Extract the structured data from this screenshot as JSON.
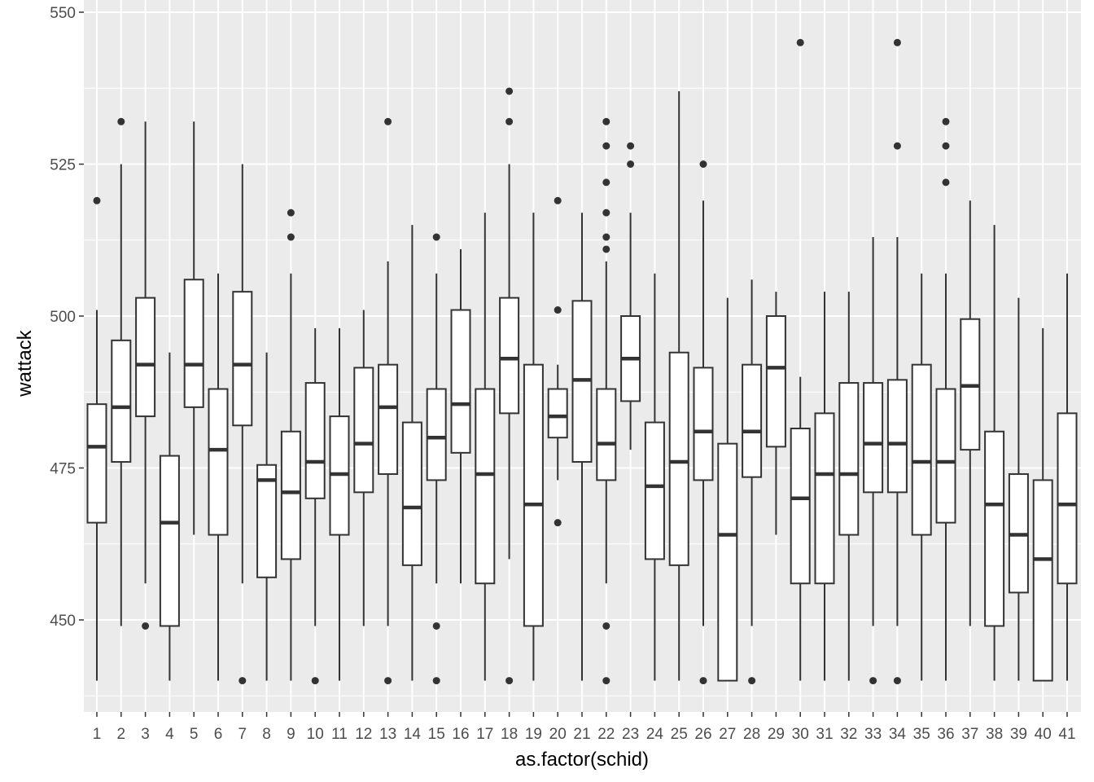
{
  "chart_data": {
    "type": "boxplot",
    "xlabel": "as.factor(schid)",
    "ylabel": "wattack",
    "ylim": [
      435,
      550
    ],
    "y_ticks": [
      450,
      475,
      500,
      525,
      550
    ],
    "grid": true,
    "colors": {
      "panel_background": "#ebebeb",
      "grid_line": "#ffffff",
      "box_fill": "#ffffff",
      "box_stroke": "#333333",
      "outlier": "#333333",
      "tick_text": "#4d4d4d"
    },
    "categories": [
      "1",
      "2",
      "3",
      "4",
      "5",
      "6",
      "7",
      "8",
      "9",
      "10",
      "11",
      "12",
      "13",
      "14",
      "15",
      "16",
      "17",
      "18",
      "19",
      "20",
      "21",
      "22",
      "23",
      "24",
      "25",
      "26",
      "27",
      "28",
      "29",
      "30",
      "31",
      "32",
      "33",
      "34",
      "35",
      "36",
      "37",
      "38",
      "39",
      "40",
      "41"
    ],
    "boxes": [
      {
        "q1": 466,
        "median": 478.5,
        "q3": 485.5,
        "lower": 440,
        "upper": 501,
        "outliers": [
          519
        ]
      },
      {
        "q1": 476,
        "median": 485,
        "q3": 496,
        "lower": 449,
        "upper": 525,
        "outliers": [
          532
        ]
      },
      {
        "q1": 483.5,
        "median": 492,
        "q3": 503,
        "lower": 456,
        "upper": 532,
        "outliers": [
          449
        ]
      },
      {
        "q1": 449,
        "median": 466,
        "q3": 477,
        "lower": 440,
        "upper": 494,
        "outliers": []
      },
      {
        "q1": 485,
        "median": 492,
        "q3": 506,
        "lower": 464,
        "upper": 532,
        "outliers": []
      },
      {
        "q1": 464,
        "median": 478,
        "q3": 488,
        "lower": 440,
        "upper": 507,
        "outliers": []
      },
      {
        "q1": 482,
        "median": 492,
        "q3": 504,
        "lower": 456,
        "upper": 525,
        "outliers": [
          440
        ]
      },
      {
        "q1": 457,
        "median": 473,
        "q3": 475.5,
        "lower": 440,
        "upper": 494,
        "outliers": []
      },
      {
        "q1": 460,
        "median": 471,
        "q3": 481,
        "lower": 440,
        "upper": 507,
        "outliers": [
          513,
          517
        ]
      },
      {
        "q1": 470,
        "median": 476,
        "q3": 489,
        "lower": 449,
        "upper": 498,
        "outliers": [
          440
        ]
      },
      {
        "q1": 464,
        "median": 474,
        "q3": 483.5,
        "lower": 440,
        "upper": 498,
        "outliers": []
      },
      {
        "q1": 471,
        "median": 479,
        "q3": 491.5,
        "lower": 449,
        "upper": 501,
        "outliers": []
      },
      {
        "q1": 474,
        "median": 485,
        "q3": 492,
        "lower": 449,
        "upper": 509,
        "outliers": [
          440,
          532
        ]
      },
      {
        "q1": 459,
        "median": 468.5,
        "q3": 482.5,
        "lower": 440,
        "upper": 515,
        "outliers": []
      },
      {
        "q1": 473,
        "median": 480,
        "q3": 488,
        "lower": 456,
        "upper": 507,
        "outliers": [
          440,
          449,
          513
        ]
      },
      {
        "q1": 477.5,
        "median": 485.5,
        "q3": 501,
        "lower": 456,
        "upper": 511,
        "outliers": []
      },
      {
        "q1": 456,
        "median": 474,
        "q3": 488,
        "lower": 440,
        "upper": 517,
        "outliers": []
      },
      {
        "q1": 484,
        "median": 493,
        "q3": 503,
        "lower": 460,
        "upper": 525,
        "outliers": [
          440,
          532,
          537
        ]
      },
      {
        "q1": 449,
        "median": 469,
        "q3": 492,
        "lower": 440,
        "upper": 517,
        "outliers": []
      },
      {
        "q1": 480,
        "median": 483.5,
        "q3": 488,
        "lower": 473,
        "upper": 492,
        "outliers": [
          466,
          501,
          519
        ]
      },
      {
        "q1": 476,
        "median": 489.5,
        "q3": 502.5,
        "lower": 440,
        "upper": 517,
        "outliers": []
      },
      {
        "q1": 473,
        "median": 479,
        "q3": 488,
        "lower": 456,
        "upper": 509,
        "outliers": [
          440,
          449,
          511,
          513,
          517,
          522,
          528,
          532
        ]
      },
      {
        "q1": 486,
        "median": 493,
        "q3": 500,
        "lower": 478,
        "upper": 517,
        "outliers": [
          525,
          528
        ]
      },
      {
        "q1": 460,
        "median": 472,
        "q3": 482.5,
        "lower": 440,
        "upper": 507,
        "outliers": []
      },
      {
        "q1": 459,
        "median": 476,
        "q3": 494,
        "lower": 440,
        "upper": 537,
        "outliers": []
      },
      {
        "q1": 473,
        "median": 481,
        "q3": 491.5,
        "lower": 449,
        "upper": 519,
        "outliers": [
          440,
          525
        ]
      },
      {
        "q1": 440,
        "median": 464,
        "q3": 479,
        "lower": 440,
        "upper": 503,
        "outliers": []
      },
      {
        "q1": 473.5,
        "median": 481,
        "q3": 492,
        "lower": 449,
        "upper": 506,
        "outliers": [
          440
        ]
      },
      {
        "q1": 478.5,
        "median": 491.5,
        "q3": 500,
        "lower": 464,
        "upper": 504,
        "outliers": []
      },
      {
        "q1": 456,
        "median": 470,
        "q3": 481.5,
        "lower": 440,
        "upper": 490,
        "outliers": [
          545
        ]
      },
      {
        "q1": 456,
        "median": 474,
        "q3": 484,
        "lower": 440,
        "upper": 504,
        "outliers": []
      },
      {
        "q1": 464,
        "median": 474,
        "q3": 489,
        "lower": 440,
        "upper": 504,
        "outliers": []
      },
      {
        "q1": 471,
        "median": 479,
        "q3": 489,
        "lower": 449,
        "upper": 513,
        "outliers": [
          440
        ]
      },
      {
        "q1": 471,
        "median": 479,
        "q3": 489.5,
        "lower": 449,
        "upper": 513,
        "outliers": [
          440,
          528,
          545
        ]
      },
      {
        "q1": 464,
        "median": 476,
        "q3": 492,
        "lower": 440,
        "upper": 507,
        "outliers": []
      },
      {
        "q1": 466,
        "median": 476,
        "q3": 488,
        "lower": 440,
        "upper": 507,
        "outliers": [
          522,
          528,
          532
        ]
      },
      {
        "q1": 478,
        "median": 488.5,
        "q3": 499.5,
        "lower": 449,
        "upper": 519,
        "outliers": []
      },
      {
        "q1": 449,
        "median": 469,
        "q3": 481,
        "lower": 440,
        "upper": 515,
        "outliers": []
      },
      {
        "q1": 454.5,
        "median": 464,
        "q3": 474,
        "lower": 440,
        "upper": 503,
        "outliers": []
      },
      {
        "q1": 440,
        "median": 460,
        "q3": 473,
        "lower": 440,
        "upper": 498,
        "outliers": []
      },
      {
        "q1": 456,
        "median": 469,
        "q3": 484,
        "lower": 440,
        "upper": 507,
        "outliers": []
      }
    ]
  }
}
